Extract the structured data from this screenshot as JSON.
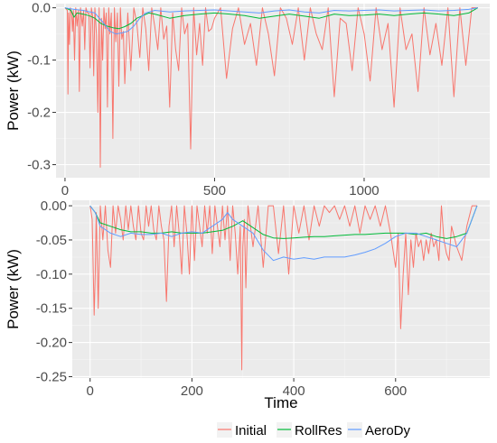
{
  "colors": {
    "panel": "#EBEBEB",
    "grid_major": "#FFFFFF",
    "initial": "#F8766D",
    "rollres": "#00BA38",
    "aerody": "#619CFF"
  },
  "legend": {
    "items": [
      "Initial",
      "RollRes",
      "AeroDy"
    ],
    "placement": "bottom"
  },
  "chart_data": [
    {
      "type": "line",
      "title": "",
      "xlabel": "",
      "ylabel": "Power (kW)",
      "xlim": [
        -30,
        1420
      ],
      "ylim": [
        -0.325,
        0.008
      ],
      "xticks": [
        0,
        500,
        1000
      ],
      "xtick_labels": [
        "0",
        "500",
        "1000"
      ],
      "yticks": [
        0.0,
        -0.1,
        -0.2,
        -0.3
      ],
      "ytick_labels": [
        "0.0",
        "-0.1",
        "-0.2",
        "-0.3"
      ],
      "grid": true,
      "series": [
        {
          "name": "Initial",
          "x": [
            0,
            8,
            10,
            12,
            15,
            18,
            22,
            25,
            28,
            32,
            36,
            40,
            45,
            48,
            52,
            58,
            62,
            66,
            70,
            75,
            80,
            84,
            88,
            92,
            96,
            100,
            105,
            110,
            114,
            118,
            122,
            126,
            130,
            134,
            138,
            142,
            146,
            150,
            155,
            160,
            165,
            170,
            175,
            180,
            185,
            190,
            195,
            200,
            210,
            220,
            230,
            240,
            250,
            260,
            270,
            280,
            290,
            300,
            310,
            320,
            330,
            340,
            350,
            360,
            370,
            380,
            390,
            400,
            410,
            420,
            430,
            440,
            450,
            460,
            470,
            480,
            490,
            500,
            520,
            540,
            560,
            580,
            600,
            620,
            640,
            660,
            680,
            700,
            720,
            740,
            760,
            780,
            800,
            820,
            840,
            860,
            880,
            900,
            920,
            940,
            960,
            980,
            1000,
            1020,
            1040,
            1060,
            1080,
            1100,
            1120,
            1140,
            1160,
            1180,
            1200,
            1220,
            1240,
            1260,
            1280,
            1300,
            1320,
            1340,
            1360,
            1380
          ],
          "y": [
            0,
            -0.005,
            -0.165,
            -0.01,
            -0.07,
            0,
            -0.01,
            -0.045,
            -0.005,
            -0.1,
            0,
            -0.035,
            -0.005,
            -0.16,
            0,
            -0.035,
            -0.005,
            -0.08,
            0,
            -0.01,
            -0.01,
            -0.115,
            0,
            -0.015,
            -0.13,
            0,
            -0.05,
            -0.2,
            0,
            -0.305,
            -0.02,
            -0.1,
            0,
            -0.04,
            -0.01,
            -0.19,
            0,
            -0.05,
            -0.01,
            -0.25,
            0,
            -0.065,
            -0.01,
            -0.15,
            0,
            -0.06,
            -0.045,
            -0.145,
            -0.01,
            -0.12,
            0,
            -0.03,
            -0.095,
            0,
            -0.04,
            -0.12,
            0,
            -0.035,
            -0.08,
            0,
            -0.06,
            -0.035,
            -0.19,
            -0.01,
            -0.08,
            -0.12,
            0,
            -0.05,
            -0.03,
            -0.27,
            0,
            -0.09,
            -0.03,
            -0.11,
            0,
            -0.045,
            -0.04,
            -0.02,
            0,
            -0.135,
            -0.04,
            0,
            -0.07,
            -0.03,
            -0.11,
            0,
            -0.05,
            -0.13,
            0,
            -0.02,
            -0.07,
            0,
            -0.1,
            0,
            -0.05,
            -0.08,
            0,
            -0.17,
            -0.02,
            -0.03,
            -0.12,
            0,
            -0.05,
            -0.14,
            0,
            -0.08,
            -0.03,
            -0.19,
            0,
            -0.08,
            -0.05,
            -0.16,
            0,
            -0.09,
            -0.03,
            -0.11,
            0,
            -0.17,
            0,
            -0.11,
            0,
            0
          ]
        },
        {
          "name": "RollRes",
          "x": [
            0,
            20,
            30,
            40,
            60,
            80,
            100,
            120,
            140,
            160,
            180,
            200,
            220,
            240,
            260,
            280,
            300,
            350,
            400,
            450,
            500,
            550,
            600,
            650,
            700,
            750,
            800,
            850,
            900,
            950,
            1000,
            1050,
            1100,
            1150,
            1200,
            1250,
            1300,
            1350,
            1380
          ],
          "y": [
            0,
            -0.005,
            -0.018,
            -0.01,
            -0.012,
            -0.015,
            -0.02,
            -0.03,
            -0.035,
            -0.038,
            -0.04,
            -0.036,
            -0.03,
            -0.02,
            -0.015,
            -0.01,
            -0.012,
            -0.02,
            -0.015,
            -0.012,
            -0.01,
            -0.012,
            -0.015,
            -0.02,
            -0.016,
            -0.012,
            -0.016,
            -0.02,
            -0.012,
            -0.015,
            -0.014,
            -0.012,
            -0.015,
            -0.012,
            -0.01,
            -0.012,
            -0.015,
            -0.01,
            0
          ]
        },
        {
          "name": "AeroDy",
          "x": [
            0,
            30,
            60,
            100,
            130,
            150,
            170,
            190,
            210,
            230,
            250,
            270,
            300,
            350,
            400,
            450,
            500,
            550,
            600,
            650,
            700,
            750,
            800,
            850,
            900,
            950,
            1000,
            1050,
            1100,
            1150,
            1200,
            1250,
            1300,
            1350,
            1380
          ],
          "y": [
            0,
            -0.003,
            -0.005,
            -0.01,
            -0.03,
            -0.045,
            -0.05,
            -0.048,
            -0.045,
            -0.035,
            -0.02,
            -0.01,
            -0.005,
            -0.008,
            -0.006,
            -0.005,
            -0.004,
            -0.006,
            -0.008,
            -0.01,
            -0.006,
            -0.004,
            -0.008,
            -0.01,
            -0.005,
            -0.006,
            -0.005,
            -0.004,
            -0.006,
            -0.005,
            -0.004,
            -0.006,
            -0.005,
            -0.003,
            0
          ]
        }
      ]
    },
    {
      "type": "line",
      "title": "",
      "xlabel": "Time",
      "ylabel": "Power (kW)",
      "xlim": [
        -35,
        785
      ],
      "ylim": [
        -0.252,
        0.008
      ],
      "xticks": [
        0,
        200,
        400,
        600
      ],
      "xtick_labels": [
        "0",
        "200",
        "400",
        "600"
      ],
      "yticks": [
        0.0,
        -0.05,
        -0.1,
        -0.15,
        -0.2,
        -0.25
      ],
      "ytick_labels": [
        "0.00",
        "-0.05",
        "-0.10",
        "-0.15",
        "-0.20",
        "-0.25"
      ],
      "grid": true,
      "series": [
        {
          "name": "Initial",
          "x": [
            0,
            4,
            8,
            10,
            12,
            16,
            20,
            25,
            30,
            35,
            40,
            45,
            50,
            55,
            60,
            65,
            70,
            75,
            80,
            85,
            90,
            95,
            100,
            105,
            110,
            115,
            120,
            125,
            130,
            135,
            140,
            145,
            150,
            155,
            160,
            165,
            170,
            175,
            180,
            185,
            190,
            195,
            200,
            205,
            210,
            215,
            220,
            225,
            230,
            235,
            240,
            245,
            250,
            255,
            260,
            265,
            270,
            275,
            280,
            285,
            290,
            295,
            298,
            300,
            303,
            306,
            310,
            320,
            330,
            340,
            350,
            360,
            370,
            380,
            390,
            400,
            410,
            420,
            430,
            440,
            450,
            460,
            470,
            480,
            490,
            500,
            510,
            520,
            530,
            540,
            550,
            560,
            570,
            580,
            590,
            600,
            605,
            610,
            615,
            620,
            625,
            630,
            635,
            640,
            645,
            650,
            655,
            660,
            665,
            670,
            675,
            680,
            685,
            690,
            695,
            700,
            705,
            710,
            720,
            730,
            740,
            750,
            760
          ],
          "y": [
            0,
            -0.02,
            -0.16,
            -0.1,
            -0.01,
            -0.15,
            0,
            -0.05,
            0,
            -0.065,
            -0.09,
            0,
            -0.04,
            0,
            -0.02,
            -0.05,
            0,
            -0.035,
            0,
            -0.03,
            -0.05,
            0,
            -0.04,
            -0.05,
            0,
            -0.03,
            0,
            -0.035,
            -0.05,
            0,
            -0.03,
            -0.05,
            -0.14,
            -0.03,
            0,
            -0.06,
            0,
            -0.04,
            -0.1,
            0,
            -0.04,
            -0.1,
            0,
            -0.08,
            0,
            -0.03,
            -0.06,
            0,
            -0.04,
            0,
            -0.07,
            0,
            -0.03,
            -0.06,
            0,
            -0.05,
            0,
            -0.08,
            0,
            -0.04,
            -0.1,
            -0.03,
            -0.24,
            -0.06,
            -0.02,
            -0.12,
            0,
            -0.06,
            0,
            -0.09,
            0,
            0,
            -0.07,
            0,
            -0.1,
            0,
            -0.04,
            0,
            -0.05,
            0,
            -0.03,
            0,
            -0.01,
            0,
            -0.02,
            0,
            -0.03,
            0,
            -0.04,
            0,
            -0.02,
            0,
            -0.03,
            0,
            -0.04,
            -0.09,
            -0.04,
            -0.18,
            -0.1,
            -0.04,
            -0.13,
            -0.05,
            -0.09,
            -0.04,
            -0.06,
            -0.05,
            -0.08,
            -0.05,
            -0.07,
            -0.04,
            -0.06,
            -0.05,
            -0.08,
            0,
            -0.05,
            -0.07,
            -0.08,
            -0.03,
            -0.06,
            -0.08,
            -0.03,
            0,
            0
          ]
        },
        {
          "name": "RollRes",
          "x": [
            0,
            10,
            20,
            40,
            60,
            80,
            100,
            120,
            140,
            160,
            180,
            200,
            220,
            240,
            260,
            280,
            300,
            320,
            340,
            360,
            380,
            400,
            420,
            440,
            460,
            480,
            500,
            520,
            540,
            560,
            580,
            600,
            620,
            640,
            660,
            680,
            700,
            720,
            740,
            760
          ],
          "y": [
            0,
            -0.01,
            -0.025,
            -0.03,
            -0.035,
            -0.038,
            -0.038,
            -0.04,
            -0.04,
            -0.038,
            -0.04,
            -0.04,
            -0.04,
            -0.038,
            -0.036,
            -0.03,
            -0.022,
            -0.032,
            -0.042,
            -0.047,
            -0.048,
            -0.047,
            -0.046,
            -0.045,
            -0.045,
            -0.044,
            -0.043,
            -0.042,
            -0.042,
            -0.041,
            -0.04,
            -0.04,
            -0.04,
            -0.042,
            -0.04,
            -0.045,
            -0.048,
            -0.045,
            -0.04,
            0
          ]
        },
        {
          "name": "AeroDy",
          "x": [
            0,
            10,
            20,
            40,
            60,
            80,
            100,
            120,
            140,
            160,
            180,
            200,
            220,
            240,
            260,
            270,
            280,
            300,
            320,
            340,
            360,
            380,
            400,
            420,
            440,
            460,
            480,
            500,
            520,
            540,
            560,
            580,
            600,
            620,
            640,
            660,
            680,
            700,
            720,
            740,
            760
          ],
          "y": [
            0,
            -0.01,
            -0.03,
            -0.04,
            -0.045,
            -0.04,
            -0.042,
            -0.042,
            -0.04,
            -0.045,
            -0.04,
            -0.038,
            -0.04,
            -0.03,
            -0.02,
            -0.01,
            -0.02,
            -0.03,
            -0.04,
            -0.065,
            -0.08,
            -0.075,
            -0.078,
            -0.076,
            -0.078,
            -0.075,
            -0.075,
            -0.075,
            -0.072,
            -0.068,
            -0.063,
            -0.055,
            -0.045,
            -0.04,
            -0.04,
            -0.045,
            -0.05,
            -0.055,
            -0.06,
            -0.04,
            0
          ]
        }
      ]
    }
  ]
}
